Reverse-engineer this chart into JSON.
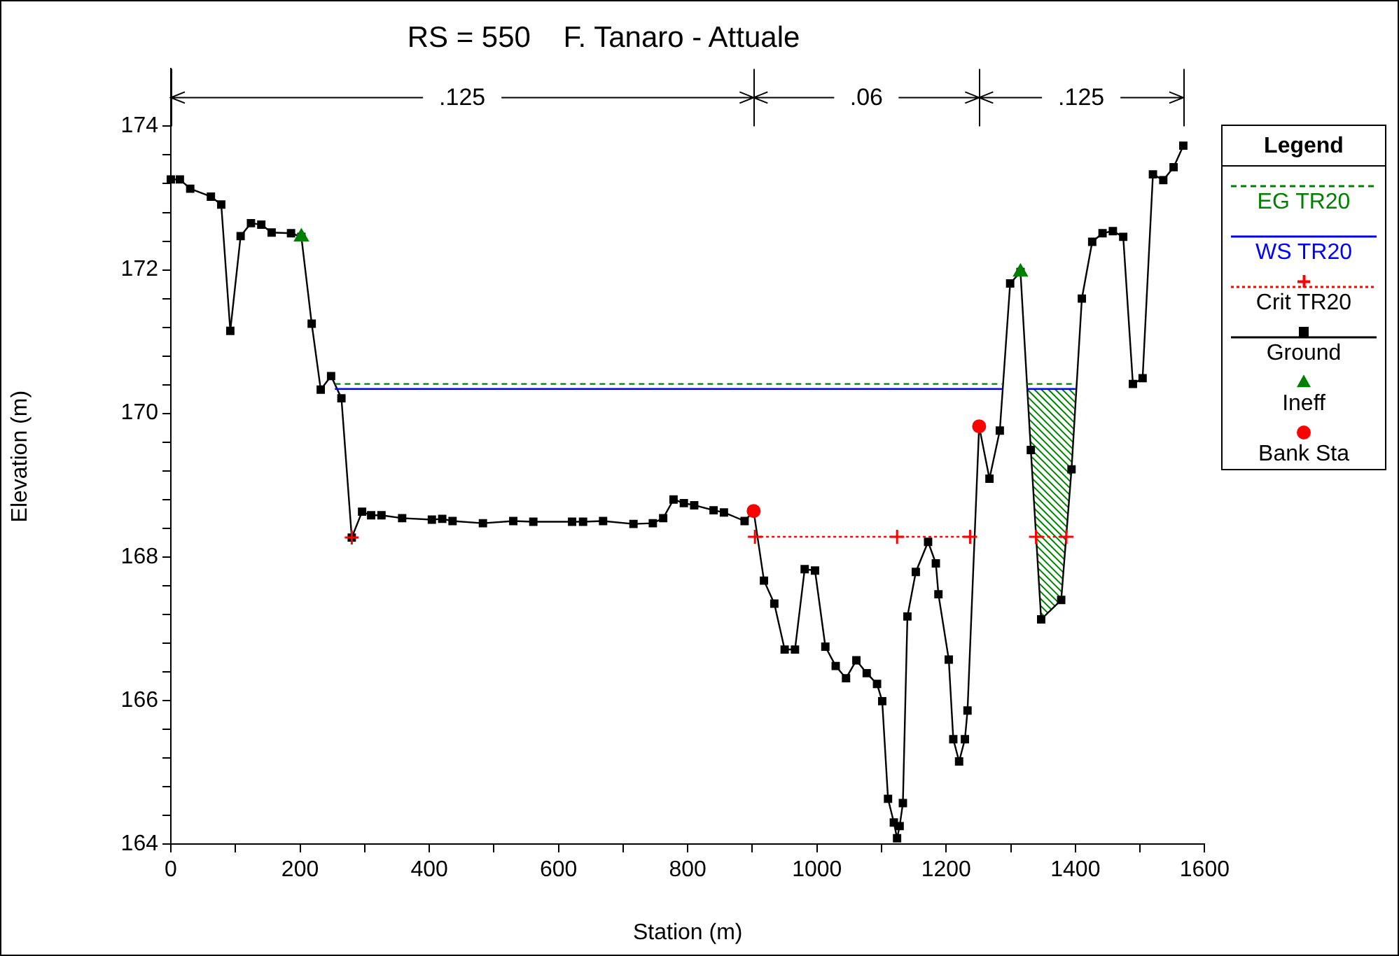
{
  "chart_data": {
    "type": "line",
    "title": "RS = 550    F. Tanaro - Attuale",
    "xlabel": "Station (m)",
    "ylabel": "Elevation (m)",
    "legend_title": "Legend",
    "legend": "right",
    "grid": false,
    "xlim": [
      0,
      1600
    ],
    "xticks": [
      0,
      {
        "value": 100,
        "label": null
      },
      200,
      {
        "value": 300,
        "label": null
      },
      400,
      {
        "value": 500,
        "label": null
      },
      600,
      {
        "value": 700,
        "label": null
      },
      800,
      {
        "value": 900,
        "label": null
      },
      1000,
      {
        "value": 1100,
        "label": null
      },
      1200,
      {
        "value": 1300,
        "label": null
      },
      1400,
      {
        "value": 1500,
        "label": null
      },
      1600
    ],
    "ylim": [
      164,
      174.8
    ],
    "yticks": [
      164,
      {
        "value": 164.4,
        "label": null
      },
      {
        "value": 164.8,
        "label": null
      },
      {
        "value": 165.2,
        "label": null
      },
      {
        "value": 165.6,
        "label": null
      },
      166,
      {
        "value": 166.4,
        "label": null
      },
      {
        "value": 166.8,
        "label": null
      },
      {
        "value": 167.2,
        "label": null
      },
      {
        "value": 167.6,
        "label": null
      },
      168,
      {
        "value": 168.4,
        "label": null
      },
      {
        "value": 168.8,
        "label": null
      },
      {
        "value": 169.2,
        "label": null
      },
      {
        "value": 169.6,
        "label": null
      },
      170,
      {
        "value": 170.4,
        "label": null
      },
      {
        "value": 170.8,
        "label": null
      },
      {
        "value": 171.2,
        "label": null
      },
      {
        "value": 171.6,
        "label": null
      },
      172,
      {
        "value": 172.4,
        "label": null
      },
      {
        "value": 172.8,
        "label": null
      },
      {
        "value": 173.2,
        "label": null
      },
      {
        "value": 173.6,
        "label": null
      },
      174
    ],
    "annotations": [
      ".125",
      ".06",
      ".125"
    ],
    "series": [
      {
        "name": "EG TR20",
        "color": "#008000",
        "line_style": "dashed",
        "marker": "none",
        "x": [
          254,
          1287,
          1306,
          1325,
          1400
        ],
        "values": [
          170.41,
          170.41,
          null,
          170.41,
          170.41
        ]
      },
      {
        "name": "WS TR20",
        "color": "#0000ff",
        "line_style": "solid",
        "marker": "none",
        "x": [
          254,
          1287,
          1306,
          1325,
          1400
        ],
        "values": [
          170.34,
          170.34,
          null,
          170.34,
          170.34
        ]
      },
      {
        "name": "Crit TR20",
        "color": "#ff0000",
        "line_style": "dotted",
        "marker": "cross",
        "x": [
          280,
          590,
          904,
          1124,
          1237,
          1290,
          1339,
          1386
        ],
        "values": [
          168.27,
          null,
          168.28,
          168.28,
          168.28,
          null,
          168.28,
          168.28
        ]
      },
      {
        "name": "Ground",
        "color": "#000000",
        "line_style": "solid",
        "marker": "square",
        "x": [
          0,
          14,
          30,
          62,
          78,
          92,
          108,
          124,
          140,
          156,
          186,
          202,
          218,
          232,
          248,
          264,
          280,
          296,
          310,
          326,
          358,
          404,
          420,
          436,
          483,
          530,
          561,
          621,
          638,
          669,
          716,
          746,
          762,
          778,
          794,
          810,
          840,
          856,
          888,
          902,
          918,
          934,
          950,
          966,
          981,
          997,
          1013,
          1029,
          1045,
          1061,
          1077,
          1093,
          1101,
          1110,
          1119,
          1124,
          1128,
          1133,
          1140,
          1153,
          1172,
          1184,
          1188,
          1204,
          1211,
          1220,
          1229,
          1233,
          1251,
          1267,
          1283,
          1299,
          1315,
          1331,
          1347,
          1378,
          1394,
          1410,
          1426,
          1442,
          1458,
          1474,
          1489,
          1504,
          1520,
          1536,
          1552,
          1567
        ],
        "values": [
          173.26,
          173.26,
          173.13,
          173.02,
          172.91,
          171.15,
          172.47,
          172.65,
          172.63,
          172.52,
          172.51,
          172.46,
          171.25,
          170.33,
          170.52,
          170.21,
          168.27,
          168.63,
          168.58,
          168.58,
          168.54,
          168.52,
          168.53,
          168.5,
          168.47,
          168.5,
          168.49,
          168.49,
          168.49,
          168.5,
          168.46,
          168.47,
          168.54,
          168.8,
          168.75,
          168.72,
          168.65,
          168.62,
          168.5,
          168.64,
          167.67,
          167.35,
          166.71,
          166.71,
          167.83,
          167.81,
          166.75,
          166.48,
          166.31,
          166.56,
          166.38,
          166.23,
          165.99,
          164.63,
          164.3,
          164.08,
          164.25,
          164.57,
          167.17,
          167.79,
          168.21,
          167.91,
          167.48,
          166.57,
          165.46,
          165.15,
          165.46,
          165.86,
          169.82,
          169.09,
          169.76,
          171.81,
          171.97,
          169.49,
          167.13,
          167.4,
          169.22,
          171.6,
          172.39,
          172.51,
          172.54,
          172.46,
          170.41,
          170.49,
          173.33,
          173.25,
          173.43,
          173.73
        ]
      },
      {
        "name": "Ineff",
        "type": "scatter",
        "color": "#008000",
        "marker": "triangle",
        "x": [
          202,
          1315
        ],
        "values": [
          172.46,
          171.97
        ]
      },
      {
        "name": "Bank Sta",
        "type": "scatter",
        "color": "#ff0000",
        "marker": "circle",
        "x": [
          902,
          1251
        ],
        "values": [
          168.64,
          169.82
        ]
      }
    ]
  }
}
